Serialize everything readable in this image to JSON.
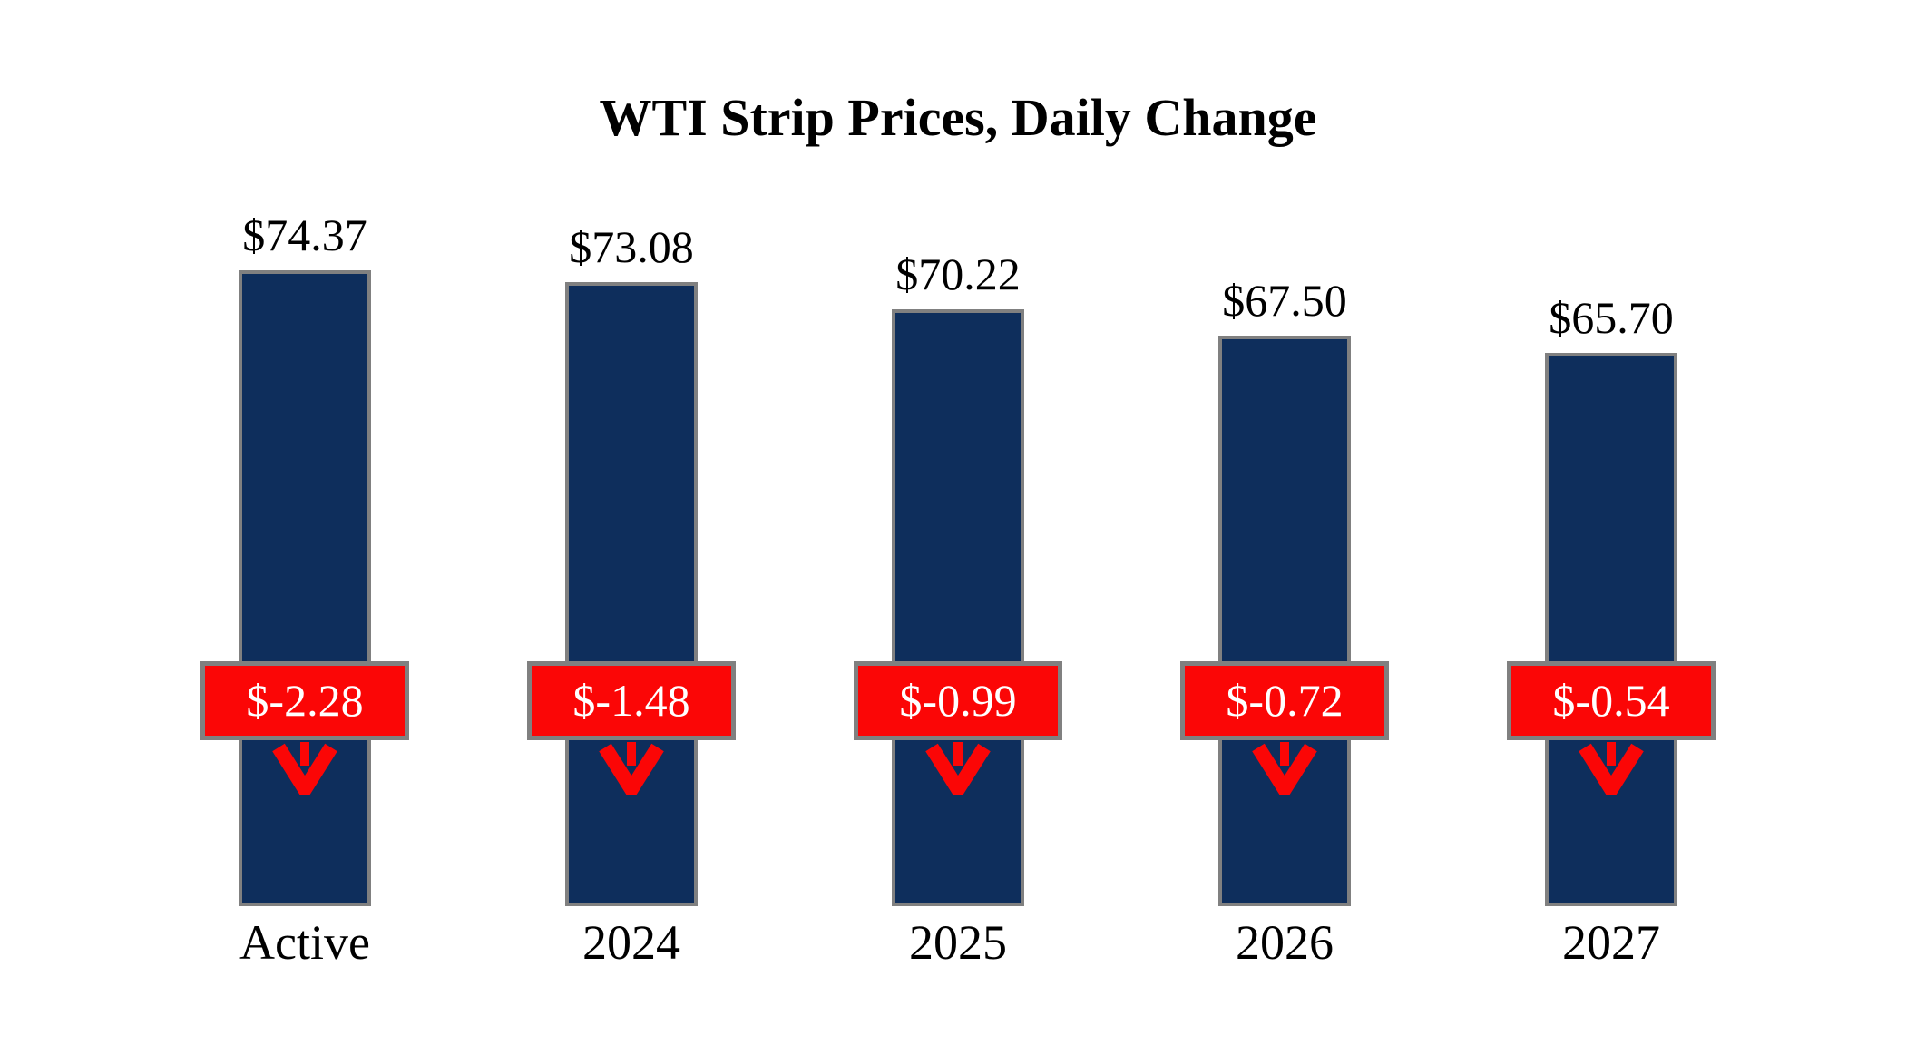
{
  "title": "WTI Strip Prices, Daily Change",
  "chart_data": {
    "type": "bar",
    "title": "WTI Strip Prices, Daily Change",
    "categories": [
      "Active",
      "2024",
      "2025",
      "2026",
      "2027"
    ],
    "series": [
      {
        "name": "WTI Strip Price",
        "values": [
          74.37,
          73.08,
          70.22,
          67.5,
          65.7
        ],
        "labels": [
          "$74.37",
          "$73.08",
          "$70.22",
          "$67.50",
          "$65.70"
        ]
      },
      {
        "name": "Daily Change",
        "values": [
          -2.28,
          -1.48,
          -0.99,
          -0.72,
          -0.54
        ],
        "labels": [
          "$-2.28",
          "$-1.48",
          "$-0.99",
          "$-0.72",
          "$-0.54"
        ]
      }
    ],
    "ylim": [
      0,
      80
    ],
    "xlabel": "",
    "ylabel": "",
    "grid": false,
    "legend_position": "none",
    "axes_hidden": true,
    "annotations": "red badge with white daily-change value and red down arrow centered on each bar",
    "colors": {
      "bar": "#0E2E5C",
      "border": "#808080",
      "badge": "#FB0606",
      "badge_text": "#FFFFFF",
      "arrow": "#FB0606",
      "text": "#000000",
      "background": "#FFFFFF"
    }
  }
}
